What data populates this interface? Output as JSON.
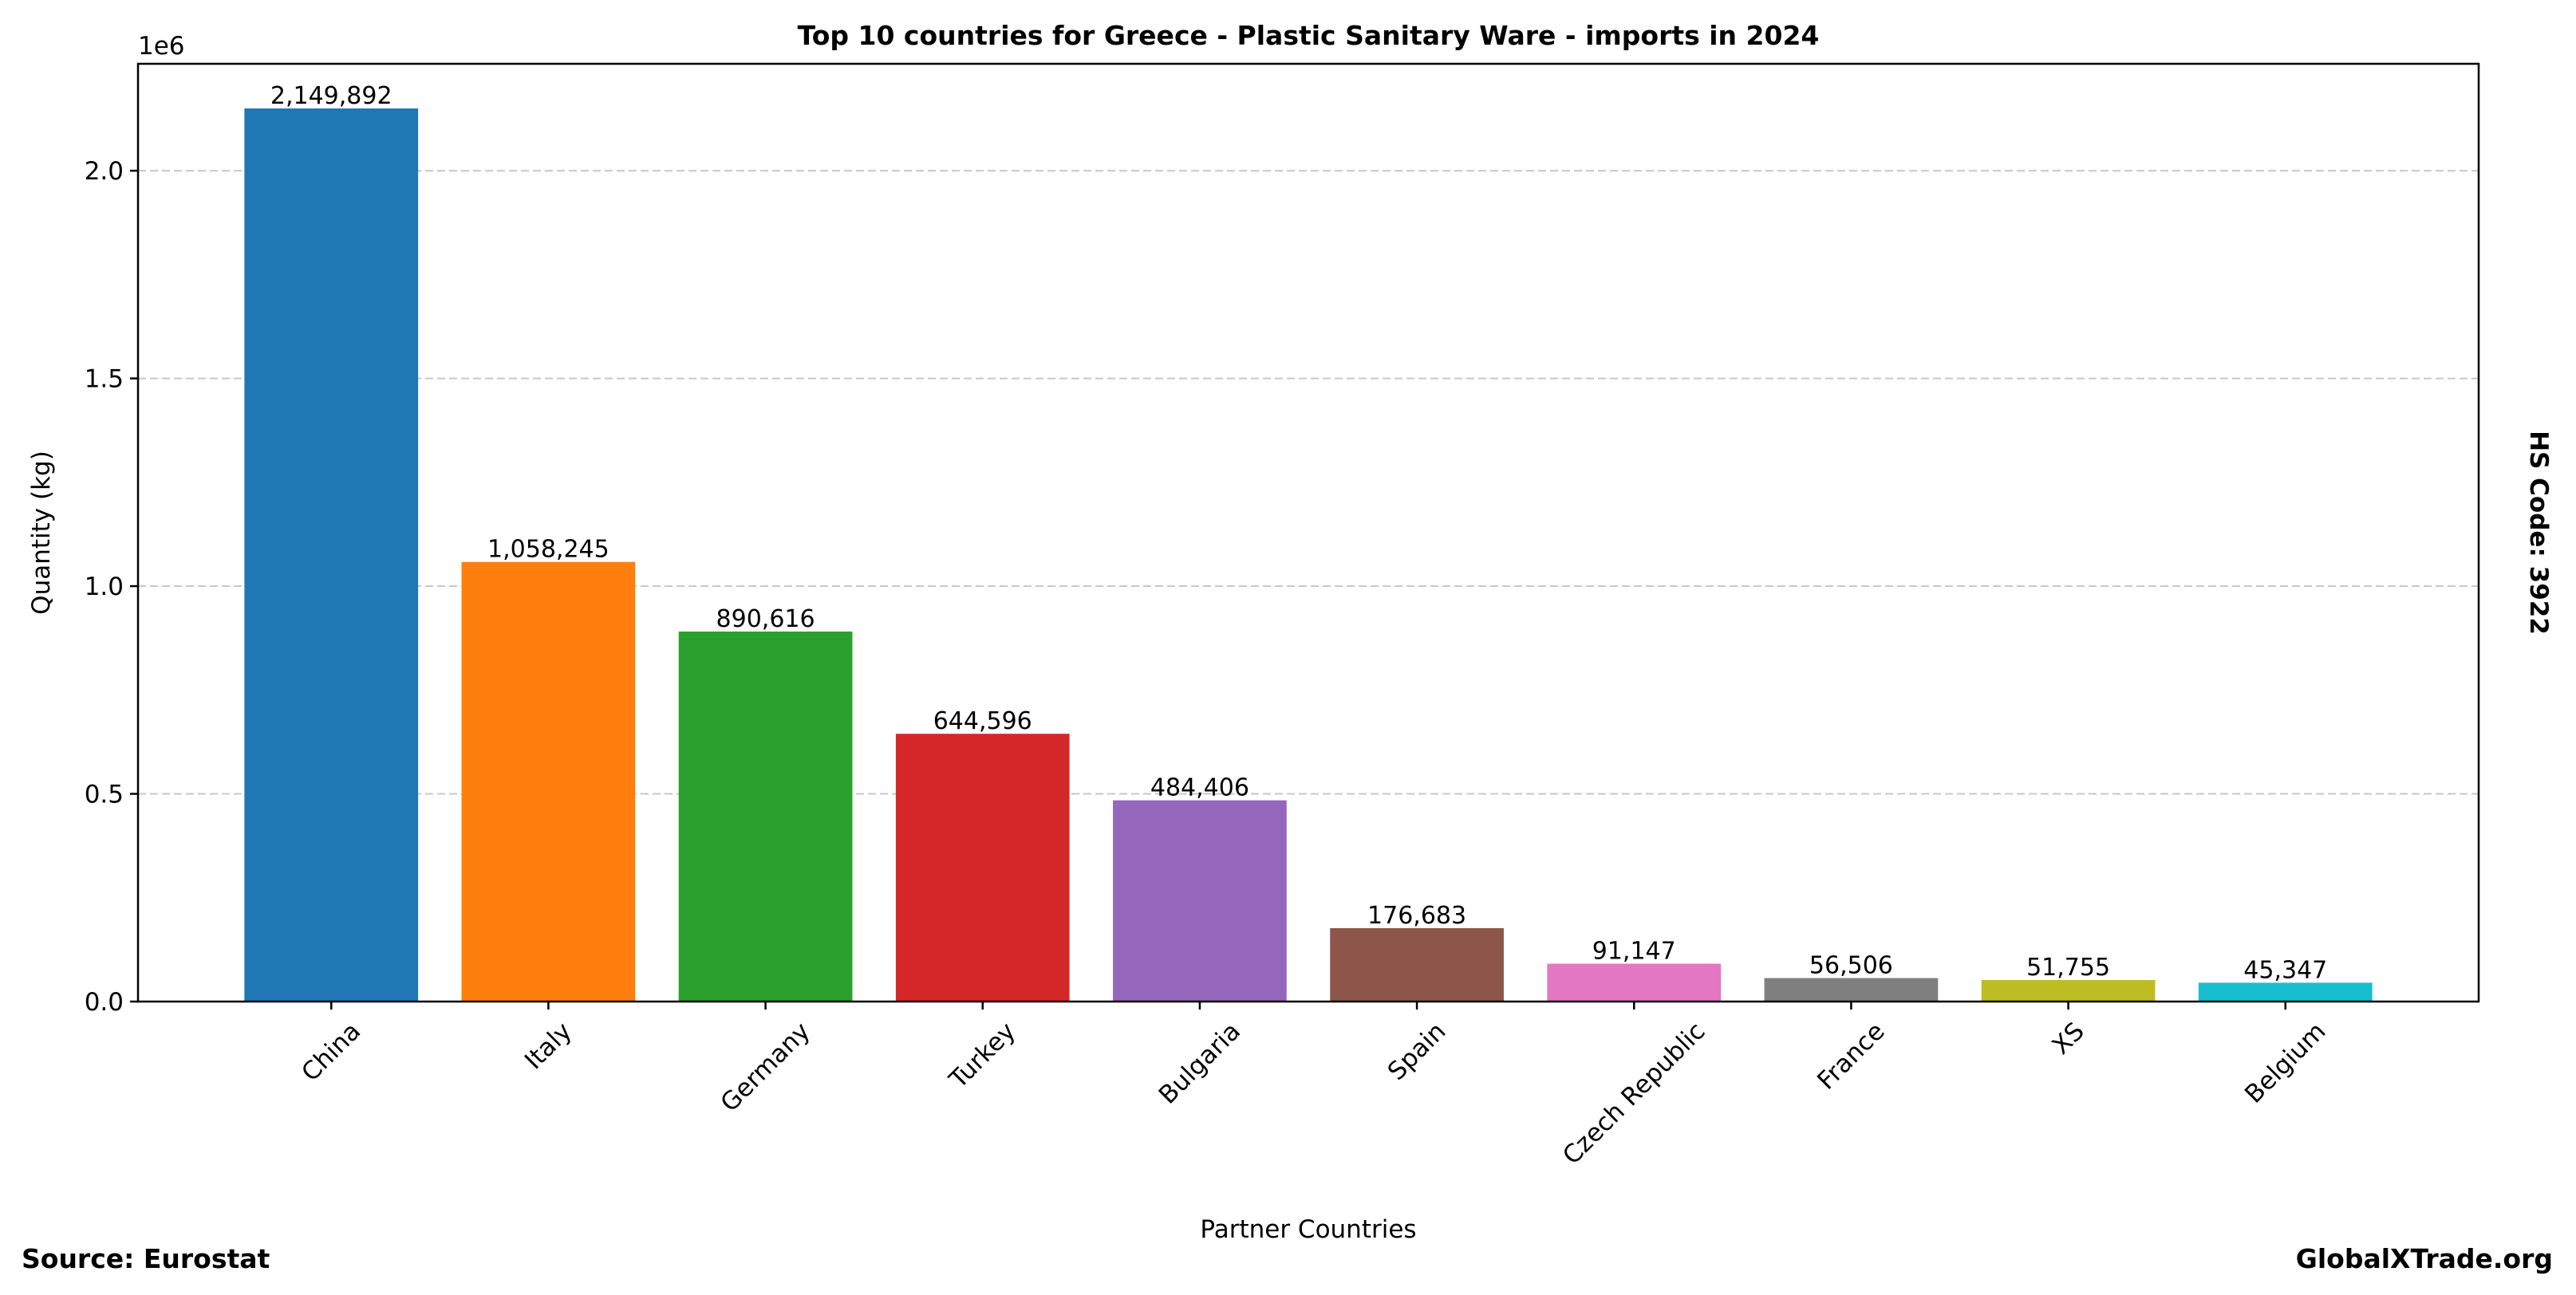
{
  "chart_data": {
    "type": "bar",
    "title": "Top 10 countries for Greece - Plastic Sanitary Ware - imports in 2024",
    "xlabel": "Partner Countries",
    "ylabel": "Quantity (kg)",
    "y_offset_label": "1e6",
    "ylim": [
      0,
      2257387
    ],
    "yticks": [
      0,
      500000,
      1000000,
      1500000,
      2000000
    ],
    "ytick_labels": [
      "0.0",
      "0.5",
      "1.0",
      "1.5",
      "2.0"
    ],
    "grid": "y dashed",
    "categories": [
      "China",
      "Italy",
      "Germany",
      "Turkey",
      "Bulgaria",
      "Spain",
      "Czech Republic",
      "France",
      "XS",
      "Belgium"
    ],
    "values": [
      2149892,
      1058245,
      890616,
      644596,
      484406,
      176683,
      91147,
      56506,
      51755,
      45347
    ],
    "value_labels": [
      "2,149,892",
      "1,058,245",
      "890,616",
      "644,596",
      "484,406",
      "176,683",
      "91,147",
      "56,506",
      "51,755",
      "45,347"
    ],
    "colors": [
      "#1f77b4",
      "#ff7f0e",
      "#2ca02c",
      "#d62728",
      "#9467bd",
      "#8c564b",
      "#e377c2",
      "#7f7f7f",
      "#bcbd22",
      "#17becf"
    ]
  },
  "annotations": {
    "hs_code": "HS Code: 3922",
    "source": "Source: Eurostat",
    "site": "GlobalXTrade.org"
  }
}
